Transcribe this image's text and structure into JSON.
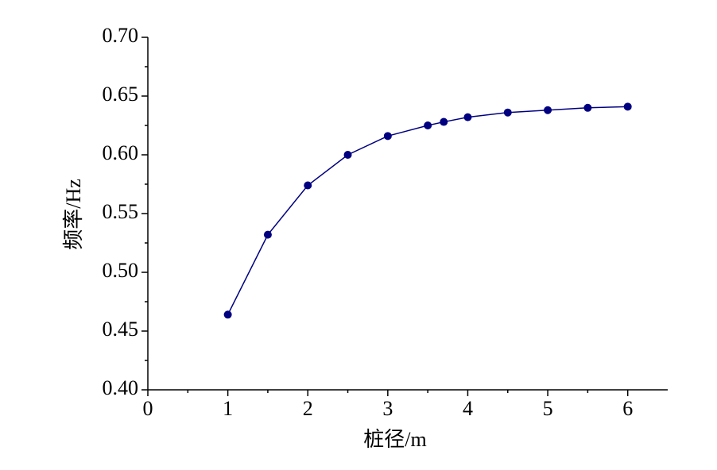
{
  "chart_data": {
    "type": "line",
    "x_label": "桩径/m",
    "y_label": "频率/Hz",
    "x": [
      1,
      1.5,
      2,
      2.5,
      3,
      3.5,
      3.7,
      4,
      4.5,
      5,
      5.5,
      6
    ],
    "series": [
      {
        "color": "#000080",
        "values": [
          0.464,
          0.532,
          0.574,
          0.6,
          0.616,
          0.625,
          0.628,
          0.632,
          0.636,
          0.638,
          0.64,
          0.641
        ]
      }
    ],
    "xlim": [
      0,
      6.5
    ],
    "xticks": [
      0,
      1,
      2,
      3,
      4,
      5,
      6
    ],
    "ylim": [
      0.4,
      0.7
    ],
    "yticks": [
      {
        "value": 0.4,
        "label": "0.40"
      },
      {
        "value": 0.45,
        "label": "0.45"
      },
      {
        "value": 0.5,
        "label": "0.50"
      },
      {
        "value": 0.55,
        "label": "0.55"
      },
      {
        "value": 0.6,
        "label": "0.60"
      },
      {
        "value": 0.65,
        "label": "0.65"
      },
      {
        "value": 0.7,
        "label": "0.70"
      }
    ],
    "grid": false
  }
}
